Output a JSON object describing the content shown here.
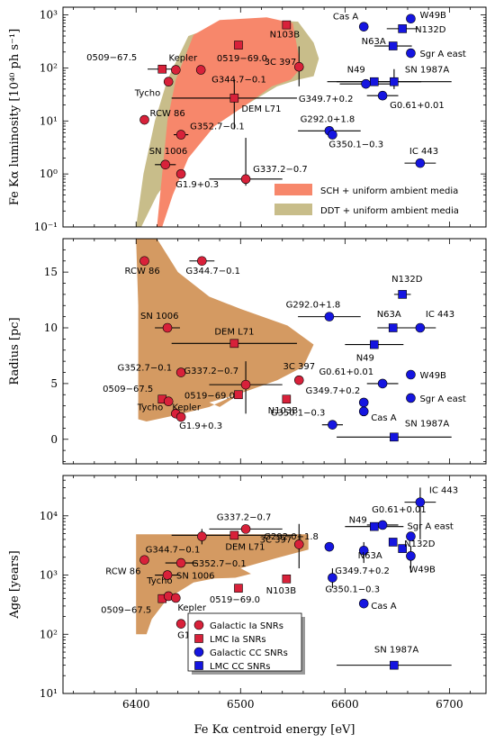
{
  "colors": {
    "ia": "#d8213a",
    "cc": "#1515e0",
    "sch": "#f7876b",
    "ddt": "#c8bd8a",
    "overlap": "#d49a62"
  },
  "chart_data": [
    {
      "type": "scatter",
      "panel": "luminosity",
      "ylabel": "Fe Kα luminosity [10⁴⁰ ph s⁻¹]",
      "yscale": "log",
      "ylim": [
        0.1,
        1400
      ],
      "xlim": [
        6330,
        6735
      ],
      "yticks": [
        {
          "v": 0.1,
          "label": "10⁻¹"
        },
        {
          "v": 1,
          "label": "10⁰"
        },
        {
          "v": 10,
          "label": "10¹"
        },
        {
          "v": 100,
          "label": "10²"
        },
        {
          "v": 1000,
          "label": "10³"
        }
      ],
      "legend": [
        {
          "key": "sch",
          "label": "SCH + uniform ambient media"
        },
        {
          "key": "ddt",
          "label": "DDT + uniform ambient media"
        }
      ],
      "bands": [
        {
          "key": "ddt",
          "points": [
            [
              6400,
              0.1
            ],
            [
              6407,
              1
            ],
            [
              6418,
              10
            ],
            [
              6430,
              60
            ],
            [
              6450,
              400
            ],
            [
              6480,
              650
            ],
            [
              6520,
              800
            ],
            [
              6555,
              750
            ],
            [
              6570,
              300
            ],
            [
              6575,
              150
            ],
            [
              6570,
              70
            ],
            [
              6555,
              60
            ],
            [
              6535,
              45
            ],
            [
              6505,
              20
            ],
            [
              6475,
              8
            ],
            [
              6445,
              2
            ],
            [
              6420,
              0.4
            ],
            [
              6405,
              0.1
            ]
          ]
        },
        {
          "key": "sch",
          "points": [
            [
              6420,
              0.1
            ],
            [
              6425,
              1
            ],
            [
              6430,
              10
            ],
            [
              6438,
              60
            ],
            [
              6455,
              420
            ],
            [
              6480,
              800
            ],
            [
              6525,
              900
            ],
            [
              6550,
              700
            ],
            [
              6555,
              200
            ],
            [
              6558,
              100
            ],
            [
              6548,
              60
            ],
            [
              6530,
              45
            ],
            [
              6505,
              20
            ],
            [
              6475,
              8
            ],
            [
              6450,
              2
            ],
            [
              6435,
              0.4
            ],
            [
              6425,
              0.1
            ]
          ]
        }
      ],
      "points": [
        {
          "name": "0509−67.5",
          "cls": "lmc_ia",
          "x": 6425,
          "y": 95,
          "xerr": 14
        },
        {
          "name": "Tycho",
          "cls": "gal_ia",
          "x": 6431,
          "y": 55
        },
        {
          "name": "Kepler",
          "cls": "gal_ia",
          "x": 6438,
          "y": 92
        },
        {
          "name": "G344.7−0.1",
          "cls": "gal_ia",
          "x": 6462,
          "y": 92
        },
        {
          "name": "0519−69.0",
          "cls": "lmc_ia",
          "x": 6498,
          "y": 270
        },
        {
          "name": "N103B",
          "cls": "lmc_ia",
          "x": 6544,
          "y": 650
        },
        {
          "name": "3C 397",
          "cls": "gal_ia",
          "x": 6556,
          "y": 105,
          "xerr": 0,
          "yerr": [
            60,
            150
          ]
        },
        {
          "name": "DEM L71",
          "cls": "lmc_ia",
          "x": 6494,
          "y": 27,
          "xerr": 60,
          "yerr": [
            20,
            35
          ]
        },
        {
          "name": "RCW 86",
          "cls": "gal_ia",
          "x": 6408,
          "y": 10.5
        },
        {
          "name": "G352.7−0.1",
          "cls": "gal_ia",
          "x": 6443,
          "y": 5.5,
          "xerr": 7
        },
        {
          "name": "SN 1006",
          "cls": "gal_ia",
          "x": 6428,
          "y": 1.5,
          "xerr": 10
        },
        {
          "name": "G1.9+0.3",
          "cls": "gal_ia",
          "x": 6443,
          "y": 1.0
        },
        {
          "name": "G337.2−0.7",
          "cls": "gal_ia",
          "x": 6505,
          "y": 0.8,
          "xerr": 35,
          "yerr": [
            0.2,
            4
          ]
        },
        {
          "name": "Cas A",
          "cls": "gal_cc",
          "x": 6618,
          "y": 600
        },
        {
          "name": "W49B",
          "cls": "gal_cc",
          "x": 6663,
          "y": 850
        },
        {
          "name": "N132D",
          "cls": "lmc_cc",
          "x": 6655,
          "y": 550,
          "xerr": 15
        },
        {
          "name": "N63A",
          "cls": "lmc_cc",
          "x": 6646,
          "y": 260,
          "xerr": 18
        },
        {
          "name": "Sgr A east",
          "cls": "gal_cc",
          "x": 6663,
          "y": 190
        },
        {
          "name": "N49",
          "cls": "lmc_cc",
          "x": 6628,
          "y": 55,
          "xerr": 45
        },
        {
          "name": "SN 1987A",
          "cls": "lmc_cc",
          "x": 6647,
          "y": 55,
          "xerr": 55,
          "yerr": [
            15,
            40
          ]
        },
        {
          "name": "G349.7+0.2",
          "cls": "gal_cc",
          "x": 6620,
          "y": 50,
          "xerr": 25
        },
        {
          "name": "G0.61+0.01",
          "cls": "gal_cc",
          "x": 6636,
          "y": 30,
          "xerr": 15
        },
        {
          "name": "G292.0+1.8",
          "cls": "gal_cc",
          "x": 6585,
          "y": 6.5,
          "xerr": 30
        },
        {
          "name": "G350.1−0.3",
          "cls": "gal_cc",
          "x": 6588,
          "y": 5.5
        },
        {
          "name": "IC 443",
          "cls": "gal_cc",
          "x": 6672,
          "y": 1.6,
          "xerr": 15
        }
      ]
    },
    {
      "type": "scatter",
      "panel": "radius",
      "ylabel": "Radius [pc]",
      "yscale": "linear",
      "ylim": [
        -2.2,
        18
      ],
      "xlim": [
        6330,
        6735
      ],
      "yticks": [
        {
          "v": 0,
          "label": "0"
        },
        {
          "v": 5,
          "label": "5"
        },
        {
          "v": 10,
          "label": "10"
        },
        {
          "v": 15,
          "label": "15"
        }
      ],
      "bands": [
        {
          "key": "overlap",
          "points": [
            [
              6400,
              18
            ],
            [
              6420,
              18
            ],
            [
              6440,
              15
            ],
            [
              6470,
              12.8
            ],
            [
              6500,
              11.7
            ],
            [
              6545,
              10.2
            ],
            [
              6570,
              8.5
            ],
            [
              6560,
              6.5
            ],
            [
              6535,
              5.3
            ],
            [
              6505,
              4.3
            ],
            [
              6485,
              3.7
            ],
            [
              6470,
              3.3
            ],
            [
              6480,
              2.9
            ],
            [
              6495,
              3.8
            ],
            [
              6505,
              4.5
            ],
            [
              6498,
              4.1
            ],
            [
              6470,
              2.9
            ],
            [
              6440,
              2.2
            ],
            [
              6410,
              1.6
            ],
            [
              6402,
              1.8
            ],
            [
              6402,
              12
            ]
          ]
        }
      ],
      "points": [
        {
          "name": "RCW 86",
          "cls": "gal_ia",
          "x": 6408,
          "y": 16
        },
        {
          "name": "G344.7−0.1",
          "cls": "gal_ia",
          "x": 6463,
          "y": 16,
          "xerr": 12
        },
        {
          "name": "SN 1006",
          "cls": "gal_ia",
          "x": 6430,
          "y": 10,
          "xerr": 12
        },
        {
          "name": "DEM L71",
          "cls": "lmc_ia",
          "x": 6494,
          "y": 8.6,
          "xerr": 60
        },
        {
          "name": "G352.7−0.1",
          "cls": "gal_ia",
          "x": 6443,
          "y": 6
        },
        {
          "name": "G337.2−0.7",
          "cls": "gal_ia",
          "x": 6505,
          "y": 4.9,
          "xerr": 35,
          "yerr": [
            2.6,
            2.1
          ]
        },
        {
          "name": "0509−67.5",
          "cls": "lmc_ia",
          "x": 6425,
          "y": 3.6
        },
        {
          "name": "Tycho",
          "cls": "gal_ia",
          "x": 6431,
          "y": 3.4
        },
        {
          "name": "Kepler",
          "cls": "gal_ia",
          "x": 6438,
          "y": 2.3
        },
        {
          "name": "G1.9+0.3",
          "cls": "gal_ia",
          "x": 6443,
          "y": 2.0
        },
        {
          "name": "0519−69.0",
          "cls": "lmc_ia",
          "x": 6498,
          "y": 4.0
        },
        {
          "name": "N103B",
          "cls": "lmc_ia",
          "x": 6544,
          "y": 3.6
        },
        {
          "name": "3C 397",
          "cls": "gal_ia",
          "x": 6556,
          "y": 5.3
        },
        {
          "name": "N132D",
          "cls": "lmc_cc",
          "x": 6655,
          "y": 13,
          "xerr": 8
        },
        {
          "name": "G292.0+1.8",
          "cls": "gal_cc",
          "x": 6585,
          "y": 11,
          "xerr": 30
        },
        {
          "name": "N63A",
          "cls": "lmc_cc",
          "x": 6646,
          "y": 10,
          "xerr": 15
        },
        {
          "name": "IC 443",
          "cls": "gal_cc",
          "x": 6672,
          "y": 10,
          "xerr": 15
        },
        {
          "name": "N49",
          "cls": "lmc_cc",
          "x": 6628,
          "y": 8.5,
          "xerr": 28
        },
        {
          "name": "W49B",
          "cls": "gal_cc",
          "x": 6663,
          "y": 5.8
        },
        {
          "name": "G0.61+0.01",
          "cls": "gal_cc",
          "x": 6636,
          "y": 5.0,
          "xerr": 15
        },
        {
          "name": "Sgr A east",
          "cls": "gal_cc",
          "x": 6663,
          "y": 3.7
        },
        {
          "name": "G349.7+0.2",
          "cls": "gal_cc",
          "x": 6618,
          "y": 3.3
        },
        {
          "name": "Cas A",
          "cls": "gal_cc",
          "x": 6618,
          "y": 2.5
        },
        {
          "name": "G350.1−0.3",
          "cls": "gal_cc",
          "x": 6588,
          "y": 1.3,
          "xerr": 10
        },
        {
          "name": "SN 1987A",
          "cls": "lmc_cc",
          "x": 6647,
          "y": 0.2,
          "xerr": 55
        }
      ]
    },
    {
      "type": "scatter",
      "panel": "age",
      "ylabel": "Age [years]",
      "xlabel": "Fe Kα centroid energy [eV]",
      "yscale": "log",
      "ylim": [
        10,
        48000
      ],
      "xlim": [
        6330,
        6735
      ],
      "xticks": [
        6400,
        6500,
        6600,
        6700
      ],
      "yticks": [
        {
          "v": 10,
          "label": "10¹"
        },
        {
          "v": 100,
          "label": "10²"
        },
        {
          "v": 1000,
          "label": "10³"
        },
        {
          "v": 10000,
          "label": "10⁴"
        }
      ],
      "legend": [
        {
          "cls": "gal_ia",
          "label": "Galactic Ia SNRs"
        },
        {
          "cls": "lmc_ia",
          "label": "LMC Ia SNRs"
        },
        {
          "cls": "gal_cc",
          "label": "Galactic CC SNRs"
        },
        {
          "cls": "lmc_cc",
          "label": "LMC CC SNRs"
        }
      ],
      "bands": [
        {
          "key": "overlap",
          "points": [
            [
              6400,
              100
            ],
            [
              6400,
              4900
            ],
            [
              6565,
              4900
            ],
            [
              6565,
              2700
            ],
            [
              6535,
              1950
            ],
            [
              6515,
              1550
            ],
            [
              6500,
              1300
            ],
            [
              6510,
              1050
            ],
            [
              6495,
              900
            ],
            [
              6475,
              880
            ],
            [
              6455,
              750
            ],
            [
              6430,
              400
            ],
            [
              6415,
              180
            ],
            [
              6410,
              100
            ]
          ]
        }
      ],
      "points": [
        {
          "name": "RCW 86",
          "cls": "gal_ia",
          "x": 6408,
          "y": 1800
        },
        {
          "name": "G344.7−0.1",
          "cls": "gal_ia",
          "x": 6463,
          "y": 4500,
          "yerr": [
            1200,
            1500
          ]
        },
        {
          "name": "G337.2−0.7",
          "cls": "gal_ia",
          "x": 6505,
          "y": 6000,
          "xerr": 35
        },
        {
          "name": "DEM L71",
          "cls": "lmc_ia",
          "x": 6494,
          "y": 4700,
          "xerr": 60
        },
        {
          "name": "3C 397",
          "cls": "gal_ia",
          "x": 6556,
          "y": 3300,
          "yerr": [
            2000,
            4000
          ]
        },
        {
          "name": "G352.7−0.1",
          "cls": "gal_ia",
          "x": 6443,
          "y": 1600,
          "xerr": 15
        },
        {
          "name": "SN 1006",
          "cls": "gal_ia",
          "x": 6430,
          "y": 1000,
          "xerr": 12
        },
        {
          "name": "0509−67.5",
          "cls": "lmc_ia",
          "x": 6425,
          "y": 400
        },
        {
          "name": "Tycho",
          "cls": "gal_ia",
          "x": 6431,
          "y": 440
        },
        {
          "name": "Kepler",
          "cls": "gal_ia",
          "x": 6438,
          "y": 410
        },
        {
          "name": "0519−69.0",
          "cls": "lmc_ia",
          "x": 6498,
          "y": 600
        },
        {
          "name": "G1.9+0.3",
          "cls": "gal_ia",
          "x": 6443,
          "y": 150
        },
        {
          "name": "N103B",
          "cls": "lmc_ia",
          "x": 6544,
          "y": 860
        },
        {
          "name": "G292.0+1.8",
          "cls": "gal_cc",
          "x": 6585,
          "y": 3000
        },
        {
          "name": "N49",
          "cls": "lmc_cc",
          "x": 6628,
          "y": 6600,
          "xerr": 28
        },
        {
          "name": "G0.61+0.01",
          "cls": "gal_cc",
          "x": 6636,
          "y": 7000,
          "xerr": 15
        },
        {
          "name": "IC 443",
          "cls": "gal_cc",
          "x": 6672,
          "y": 17000,
          "xerr": 15,
          "yerr": [
            13000,
            13000
          ]
        },
        {
          "name": "Sgr A east",
          "cls": "gal_cc",
          "x": 6663,
          "y": 4500
        },
        {
          "name": "N63A",
          "cls": "lmc_cc",
          "x": 6646,
          "y": 3600
        },
        {
          "name": "N132D",
          "cls": "lmc_cc",
          "x": 6655,
          "y": 2800
        },
        {
          "name": "W49B",
          "cls": "gal_cc",
          "x": 6663,
          "y": 2100,
          "yerr": [
            1000,
            1000
          ]
        },
        {
          "name": "G349.7+0.2",
          "cls": "gal_cc",
          "x": 6618,
          "y": 2600,
          "yerr": [
            1000,
            1000
          ]
        },
        {
          "name": "G350.1−0.3",
          "cls": "gal_cc",
          "x": 6588,
          "y": 900,
          "yerr": [
            300,
            400
          ]
        },
        {
          "name": "Cas A",
          "cls": "gal_cc",
          "x": 6618,
          "y": 330
        },
        {
          "name": "SN 1987A",
          "cls": "lmc_cc",
          "x": 6647,
          "y": 30,
          "xerr": 55
        }
      ]
    }
  ]
}
